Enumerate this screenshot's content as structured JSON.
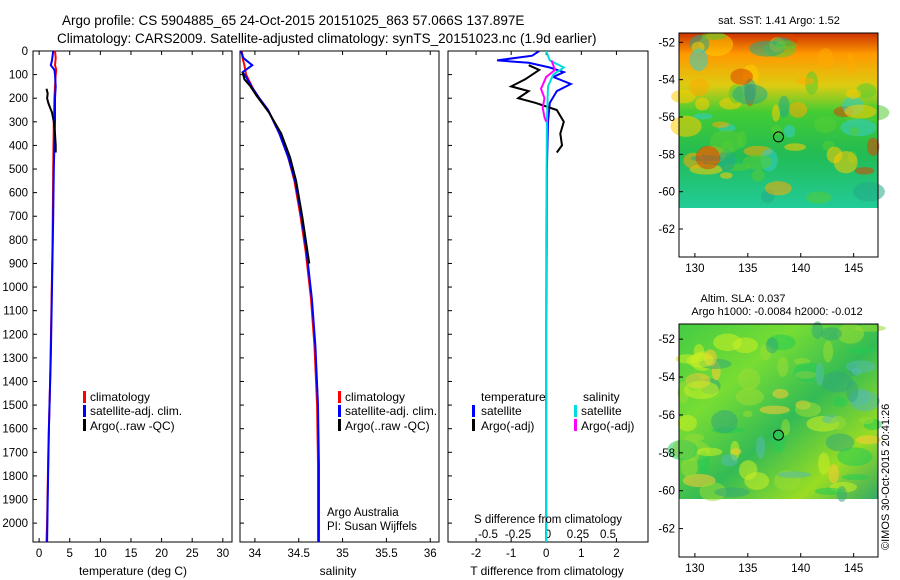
{
  "header": {
    "line1": "Argo profile: CS 5904885_65 24-Oct-2015 20151025_863 57.066S 137.897E",
    "line2": "Climatology: CARS2009. Satellite-adjusted climatology: synTS_20151023.nc (1.9d earlier)"
  },
  "colors": {
    "clim": "#ff0000",
    "sat": "#0000ff",
    "argo": "#000000",
    "sal_sat": "#00dddd",
    "sal_argo": "#ff00ff"
  },
  "depth_axis": {
    "ticks": [
      0,
      100,
      200,
      300,
      400,
      500,
      600,
      700,
      800,
      900,
      1000,
      1100,
      1200,
      1300,
      1400,
      1500,
      1600,
      1700,
      1800,
      1900,
      2000
    ],
    "ticklabels": [
      "0",
      "100",
      "200",
      "300",
      "400",
      "500",
      "600",
      "700",
      "800",
      "900",
      "1000",
      "1100",
      "1200",
      "1300",
      "1400",
      "1500",
      "1600",
      "1700",
      "1800",
      "1900",
      "2000"
    ],
    "range": [
      0,
      2080
    ]
  },
  "chart_data": [
    {
      "type": "line",
      "id": "temperature",
      "xlabel": "temperature (deg C)",
      "xlim": [
        -1,
        31.5
      ],
      "xticks": [
        0,
        5,
        10,
        15,
        20,
        25,
        30
      ],
      "xticklabels": [
        "0",
        "5",
        "10",
        "15",
        "20",
        "25",
        "30"
      ],
      "legend": [
        "climatology",
        "satellite-adj. clim.",
        "Argo(..raw -QC)"
      ],
      "legend_placement": "middle-right",
      "series": [
        {
          "name": "climatology",
          "color": "#ff0000",
          "points": [
            [
              2.6,
              0
            ],
            [
              2.7,
              30
            ],
            [
              2.6,
              60
            ],
            [
              2.8,
              80
            ],
            [
              2.7,
              100
            ],
            [
              2.6,
              150
            ],
            [
              2.5,
              200
            ],
            [
              2.4,
              300
            ],
            [
              2.3,
              500
            ],
            [
              2.2,
              800
            ],
            [
              2.0,
              1100
            ],
            [
              1.8,
              1400
            ],
            [
              1.5,
              1700
            ],
            [
              1.3,
              2000
            ],
            [
              1.2,
              2080
            ]
          ]
        },
        {
          "name": "satellite-adj. clim.",
          "color": "#0000ff",
          "points": [
            [
              2.3,
              0
            ],
            [
              2.1,
              40
            ],
            [
              1.9,
              60
            ],
            [
              2.5,
              80
            ],
            [
              2.6,
              100
            ],
            [
              2.7,
              150
            ],
            [
              2.6,
              200
            ],
            [
              2.6,
              300
            ],
            [
              2.5,
              400
            ],
            [
              2.4,
              500
            ],
            [
              2.3,
              700
            ],
            [
              2.1,
              1000
            ],
            [
              1.9,
              1300
            ],
            [
              1.6,
              1600
            ],
            [
              1.4,
              1900
            ],
            [
              1.3,
              2080
            ]
          ]
        },
        {
          "name": "Argo(..raw -QC)",
          "color": "#000000",
          "points": [
            [
              1.2,
              160
            ],
            [
              1.4,
              180
            ],
            [
              1.3,
              200
            ],
            [
              1.5,
              220
            ],
            [
              1.8,
              240
            ],
            [
              2.1,
              260
            ],
            [
              2.4,
              300
            ],
            [
              2.6,
              350
            ],
            [
              2.7,
              400
            ],
            [
              2.7,
              430
            ]
          ]
        }
      ]
    },
    {
      "type": "line",
      "id": "salinity",
      "xlabel": "salinity",
      "xlim": [
        33.83,
        36.1
      ],
      "xticks": [
        34,
        34.5,
        35,
        35.5,
        36
      ],
      "xticklabels": [
        "34",
        "34.5",
        "35",
        "35.5",
        "36"
      ],
      "legend": [
        "climatology",
        "satellite-adj. clim.",
        "Argo(..raw -QC)"
      ],
      "legend_placement": "middle-right",
      "annotation": [
        "Argo Australia",
        "PI: Susan Wijffels"
      ],
      "series": [
        {
          "name": "climatology",
          "color": "#ff0000",
          "points": [
            [
              33.85,
              0
            ],
            [
              33.86,
              30
            ],
            [
              33.88,
              60
            ],
            [
              33.9,
              100
            ],
            [
              33.98,
              160
            ],
            [
              34.05,
              200
            ],
            [
              34.15,
              250
            ],
            [
              34.28,
              350
            ],
            [
              34.38,
              450
            ],
            [
              34.45,
              550
            ],
            [
              34.52,
              700
            ],
            [
              34.58,
              850
            ],
            [
              34.64,
              1050
            ],
            [
              34.68,
              1250
            ],
            [
              34.71,
              1500
            ],
            [
              34.72,
              1750
            ],
            [
              34.72,
              2000
            ],
            [
              34.72,
              2080
            ]
          ]
        },
        {
          "name": "satellite-adj. clim.",
          "color": "#0000ff",
          "points": [
            [
              33.84,
              0
            ],
            [
              33.87,
              30
            ],
            [
              33.97,
              60
            ],
            [
              33.86,
              90
            ],
            [
              33.9,
              110
            ],
            [
              33.96,
              150
            ],
            [
              34.05,
              200
            ],
            [
              34.15,
              250
            ],
            [
              34.28,
              350
            ],
            [
              34.38,
              450
            ],
            [
              34.46,
              550
            ],
            [
              34.53,
              700
            ],
            [
              34.59,
              850
            ],
            [
              34.65,
              1050
            ],
            [
              34.69,
              1250
            ],
            [
              34.72,
              1500
            ],
            [
              34.73,
              1750
            ],
            [
              34.73,
              2000
            ],
            [
              34.73,
              2080
            ]
          ]
        },
        {
          "name": "Argo(..raw -QC)",
          "color": "#000000",
          "points": [
            [
              33.86,
              90
            ],
            [
              33.88,
              120
            ],
            [
              33.95,
              150
            ],
            [
              34.02,
              190
            ],
            [
              34.08,
              220
            ],
            [
              34.16,
              260
            ],
            [
              34.3,
              350
            ],
            [
              34.4,
              450
            ],
            [
              34.47,
              550
            ],
            [
              34.54,
              700
            ],
            [
              34.6,
              850
            ],
            [
              34.62,
              900
            ]
          ]
        }
      ]
    },
    {
      "type": "line",
      "id": "difference",
      "xlabel": "T difference from climatology",
      "xlabel2": "S difference from climatology",
      "xlim": [
        -2.8,
        2.9
      ],
      "xticks": [
        -2,
        -1,
        0,
        1,
        2
      ],
      "xticklabels": [
        "-2",
        "-1",
        "0",
        "1",
        "2"
      ],
      "sticks": [
        -0.5,
        -0.25,
        0,
        0.25,
        0.5
      ],
      "sticklabels": [
        "-0.5",
        "-0.25",
        "0",
        "0.25",
        "0.5"
      ],
      "legend_temperature_title": "temperature",
      "legend_salinity_title": "salinity",
      "legend_temperature": [
        "satellite",
        "Argo(-adj)"
      ],
      "legend_salinity": [
        "satellite",
        "Argo(-adj)"
      ],
      "legend_placement": "middle",
      "series": [
        {
          "name": "temperature satellite",
          "color": "#0000ff",
          "points": [
            [
              -0.2,
              0
            ],
            [
              -0.4,
              20
            ],
            [
              -1.4,
              40
            ],
            [
              -0.5,
              50
            ],
            [
              0.1,
              70
            ],
            [
              0.5,
              90
            ],
            [
              0.2,
              110
            ],
            [
              0.7,
              140
            ],
            [
              0.3,
              170
            ],
            [
              0.1,
              220
            ],
            [
              0.05,
              300
            ],
            [
              0.02,
              500
            ],
            [
              0.01,
              800
            ],
            [
              0.0,
              1200
            ],
            [
              0.0,
              1600
            ],
            [
              0.0,
              2080
            ]
          ]
        },
        {
          "name": "temperature Argo(-adj)",
          "color": "#000000",
          "points": [
            [
              -0.5,
              60
            ],
            [
              -0.2,
              80
            ],
            [
              -0.6,
              120
            ],
            [
              -1.0,
              150
            ],
            [
              -0.5,
              170
            ],
            [
              -0.8,
              200
            ],
            [
              -0.3,
              220
            ],
            [
              0.3,
              250
            ],
            [
              0.5,
              300
            ],
            [
              0.4,
              350
            ],
            [
              0.45,
              400
            ],
            [
              0.3,
              430
            ]
          ]
        },
        {
          "name": "salinity satellite",
          "color": "#00dddd",
          "points": [
            [
              0.0,
              0
            ],
            [
              0.1,
              40
            ],
            [
              0.5,
              70
            ],
            [
              0.2,
              100
            ],
            [
              0.05,
              150
            ],
            [
              0.02,
              300
            ],
            [
              0.0,
              800
            ],
            [
              0.0,
              1600
            ],
            [
              0.0,
              2080
            ]
          ]
        },
        {
          "name": "salinity Argo(-adj)",
          "color": "#ff00ff",
          "points": [
            [
              0.15,
              40
            ],
            [
              0.25,
              80
            ],
            [
              0.0,
              110
            ],
            [
              -0.15,
              160
            ],
            [
              -0.05,
              200
            ],
            [
              -0.1,
              240
            ],
            [
              -0.05,
              280
            ],
            [
              0.0,
              300
            ]
          ]
        }
      ]
    },
    {
      "type": "heatmap",
      "id": "sst_map",
      "title": "sat. SST: 1.41  Argo: 1.52",
      "xticks": [
        130,
        135,
        140,
        145
      ],
      "xticklabels": [
        "130",
        "135",
        "140",
        "145"
      ],
      "yticks": [
        -52,
        -54,
        -56,
        -58,
        -60,
        -62
      ],
      "yticklabels": [
        "-52",
        "-54",
        "-56",
        "-58",
        "-60",
        "-62"
      ],
      "xlim": [
        128.5,
        147.3
      ],
      "ylim": [
        -63.5,
        -51.5
      ],
      "data_ylim": [
        -60.0,
        -51.5
      ],
      "float_position": [
        137.897,
        -57.066
      ]
    },
    {
      "type": "heatmap",
      "id": "sla_map",
      "title1": "Altim. SLA: 0.037",
      "title2": "Argo h1000: -0.0084  h2000: -0.012",
      "xticks": [
        130,
        135,
        140,
        145
      ],
      "xticklabels": [
        "130",
        "135",
        "140",
        "145"
      ],
      "yticks": [
        -52,
        -54,
        -56,
        -58,
        -60,
        -62
      ],
      "yticklabels": [
        "-52",
        "-54",
        "-56",
        "-58",
        "-60",
        "-62"
      ],
      "xlim": [
        128.5,
        147.3
      ],
      "ylim": [
        -63.5,
        -51.2
      ],
      "data_ylim": [
        -60.0,
        -51.2
      ],
      "float_position": [
        137.897,
        -57.066
      ]
    }
  ],
  "side_stamp": "©IMOS 30-Oct-2015 20:41:26"
}
